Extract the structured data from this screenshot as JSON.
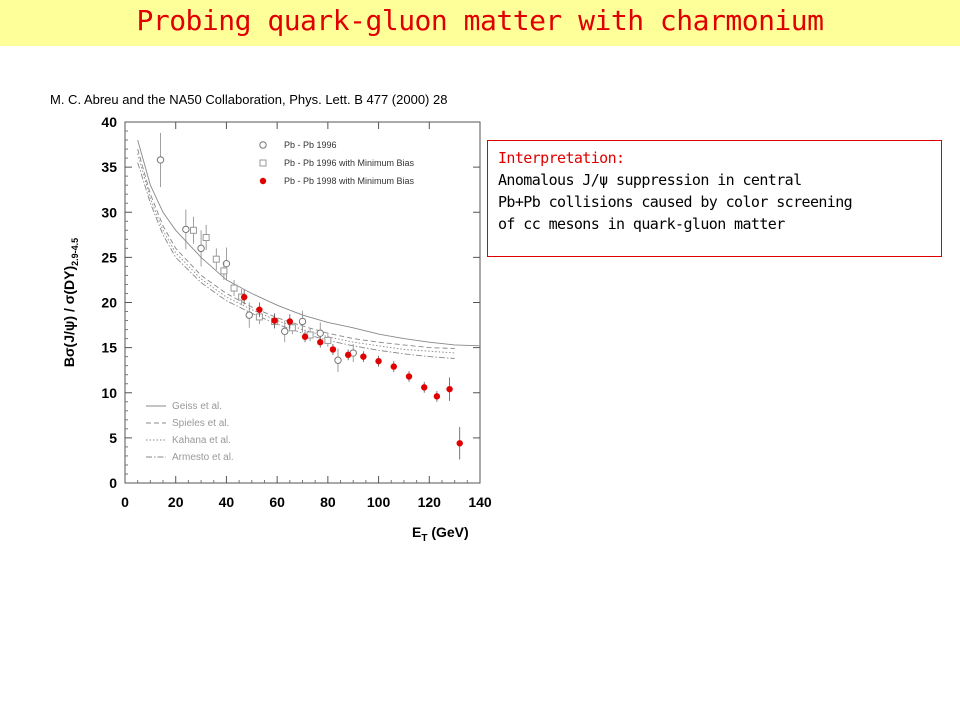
{
  "header": {
    "title": "Probing quark-gluon matter with charmonium",
    "background": "#ffff99",
    "title_color": "#e00000"
  },
  "citation": "M. C. Abreu and the NA50 Collaboration, Phys. Lett. B 477 (2000) 28",
  "interpretation": {
    "heading": "Interpretation:",
    "lines": [
      "Anomalous J/ψ suppression in central",
      "Pb+Pb collisions caused by color screening",
      "of cc mesons in quark-gluon matter"
    ]
  },
  "chart_data": {
    "type": "scatter",
    "xlabel": "Eₜ (GeV)",
    "xlabel_main": "E",
    "xlabel_sub": "T",
    "xlabel_rest": " (GeV)",
    "ylabel": "Bσ(J/ψ) / σ(DY)",
    "ylabel_sub": "2.9-4.5",
    "xlim": [
      0,
      140
    ],
    "ylim": [
      0,
      40
    ],
    "x_ticks": [
      0,
      20,
      40,
      60,
      80,
      100,
      120,
      140
    ],
    "y_ticks": [
      0,
      5,
      10,
      15,
      20,
      25,
      30,
      35,
      40
    ],
    "grid": false,
    "legend_position": "top-right",
    "series": [
      {
        "name": "Pb - Pb 1996",
        "marker": "open-circle",
        "color": "#777777",
        "points": [
          {
            "x": 14,
            "y": 35.8,
            "err": 3.0
          },
          {
            "x": 24,
            "y": 28.1,
            "err": 2.2
          },
          {
            "x": 30,
            "y": 26.0,
            "err": 2.0
          },
          {
            "x": 40,
            "y": 24.3,
            "err": 1.8
          },
          {
            "x": 49,
            "y": 18.6,
            "err": 1.4
          },
          {
            "x": 63,
            "y": 16.8,
            "err": 1.2
          },
          {
            "x": 70,
            "y": 17.9,
            "err": 1.2
          },
          {
            "x": 77,
            "y": 16.6,
            "err": 1.2
          },
          {
            "x": 84,
            "y": 13.6,
            "err": 1.3
          },
          {
            "x": 90,
            "y": 14.4,
            "err": 1.0
          }
        ]
      },
      {
        "name": "Pb - Pb 1996 with Minimum Bias",
        "marker": "open-square",
        "color": "#999999",
        "points": [
          {
            "x": 27,
            "y": 28.0,
            "err": 1.5
          },
          {
            "x": 32,
            "y": 27.2,
            "err": 1.4
          },
          {
            "x": 36,
            "y": 24.8,
            "err": 1.2
          },
          {
            "x": 39,
            "y": 23.5,
            "err": 1.0
          },
          {
            "x": 43,
            "y": 21.6,
            "err": 0.9
          },
          {
            "x": 46,
            "y": 20.6,
            "err": 0.9
          },
          {
            "x": 53,
            "y": 18.4,
            "err": 0.8
          },
          {
            "x": 59,
            "y": 17.9,
            "err": 0.8
          },
          {
            "x": 66,
            "y": 17.2,
            "err": 0.7
          },
          {
            "x": 73,
            "y": 16.4,
            "err": 0.7
          },
          {
            "x": 80,
            "y": 15.8,
            "err": 0.7
          }
        ]
      },
      {
        "name": "Pb - Pb 1998 with Minimum Bias",
        "marker": "filled-circle",
        "color": "#e00000",
        "points": [
          {
            "x": 47,
            "y": 20.6,
            "err": 0.8
          },
          {
            "x": 53,
            "y": 19.2,
            "err": 0.8
          },
          {
            "x": 59,
            "y": 18.0,
            "err": 0.8
          },
          {
            "x": 65,
            "y": 17.9,
            "err": 0.8
          },
          {
            "x": 71,
            "y": 16.2,
            "err": 0.6
          },
          {
            "x": 77,
            "y": 15.6,
            "err": 0.6
          },
          {
            "x": 82,
            "y": 14.8,
            "err": 0.6
          },
          {
            "x": 88,
            "y": 14.2,
            "err": 0.6
          },
          {
            "x": 94,
            "y": 14.0,
            "err": 0.6
          },
          {
            "x": 100,
            "y": 13.5,
            "err": 0.6
          },
          {
            "x": 106,
            "y": 12.9,
            "err": 0.6
          },
          {
            "x": 112,
            "y": 11.8,
            "err": 0.6
          },
          {
            "x": 118,
            "y": 10.6,
            "err": 0.6
          },
          {
            "x": 123,
            "y": 9.6,
            "err": 0.6
          },
          {
            "x": 128,
            "y": 10.4,
            "err": 1.3
          },
          {
            "x": 132,
            "y": 4.4,
            "err": 1.8
          }
        ]
      }
    ],
    "models": [
      {
        "name": "Geiss et al.",
        "style": "solid",
        "points": [
          [
            5,
            38
          ],
          [
            10,
            33
          ],
          [
            15,
            30
          ],
          [
            20,
            28
          ],
          [
            30,
            25
          ],
          [
            40,
            22.5
          ],
          [
            50,
            21
          ],
          [
            60,
            19.7
          ],
          [
            70,
            18.6
          ],
          [
            80,
            17.8
          ],
          [
            90,
            17.2
          ],
          [
            100,
            16.5
          ],
          [
            110,
            16.0
          ],
          [
            120,
            15.6
          ],
          [
            130,
            15.3
          ],
          [
            140,
            15.2
          ]
        ]
      },
      {
        "name": "Spieles et al.",
        "style": "dashed",
        "points": [
          [
            5,
            37
          ],
          [
            10,
            32
          ],
          [
            15,
            28.5
          ],
          [
            20,
            26
          ],
          [
            30,
            23
          ],
          [
            40,
            21
          ],
          [
            50,
            19.5
          ],
          [
            60,
            18.3
          ],
          [
            70,
            17.4
          ],
          [
            80,
            16.6
          ],
          [
            90,
            16.0
          ],
          [
            100,
            15.6
          ],
          [
            110,
            15.3
          ],
          [
            120,
            15.0
          ],
          [
            130,
            14.9
          ]
        ]
      },
      {
        "name": "Kahana et al.",
        "style": "dotted",
        "points": [
          [
            5,
            36.5
          ],
          [
            10,
            31.5
          ],
          [
            15,
            28
          ],
          [
            20,
            25.5
          ],
          [
            30,
            22.6
          ],
          [
            40,
            20.6
          ],
          [
            50,
            19.2
          ],
          [
            60,
            18.0
          ],
          [
            70,
            17.0
          ],
          [
            80,
            16.2
          ],
          [
            90,
            15.6
          ],
          [
            100,
            15.2
          ],
          [
            110,
            14.8
          ],
          [
            120,
            14.6
          ],
          [
            130,
            14.4
          ]
        ]
      },
      {
        "name": "Armesto et al.",
        "style": "dashdot",
        "points": [
          [
            5,
            35.5
          ],
          [
            10,
            31
          ],
          [
            15,
            27.5
          ],
          [
            20,
            25
          ],
          [
            30,
            22.2
          ],
          [
            40,
            20.2
          ],
          [
            50,
            18.8
          ],
          [
            60,
            17.6
          ],
          [
            70,
            16.6
          ],
          [
            80,
            15.8
          ],
          [
            90,
            15.2
          ],
          [
            100,
            14.7
          ],
          [
            110,
            14.3
          ],
          [
            120,
            14.0
          ],
          [
            130,
            13.8
          ]
        ]
      }
    ]
  }
}
